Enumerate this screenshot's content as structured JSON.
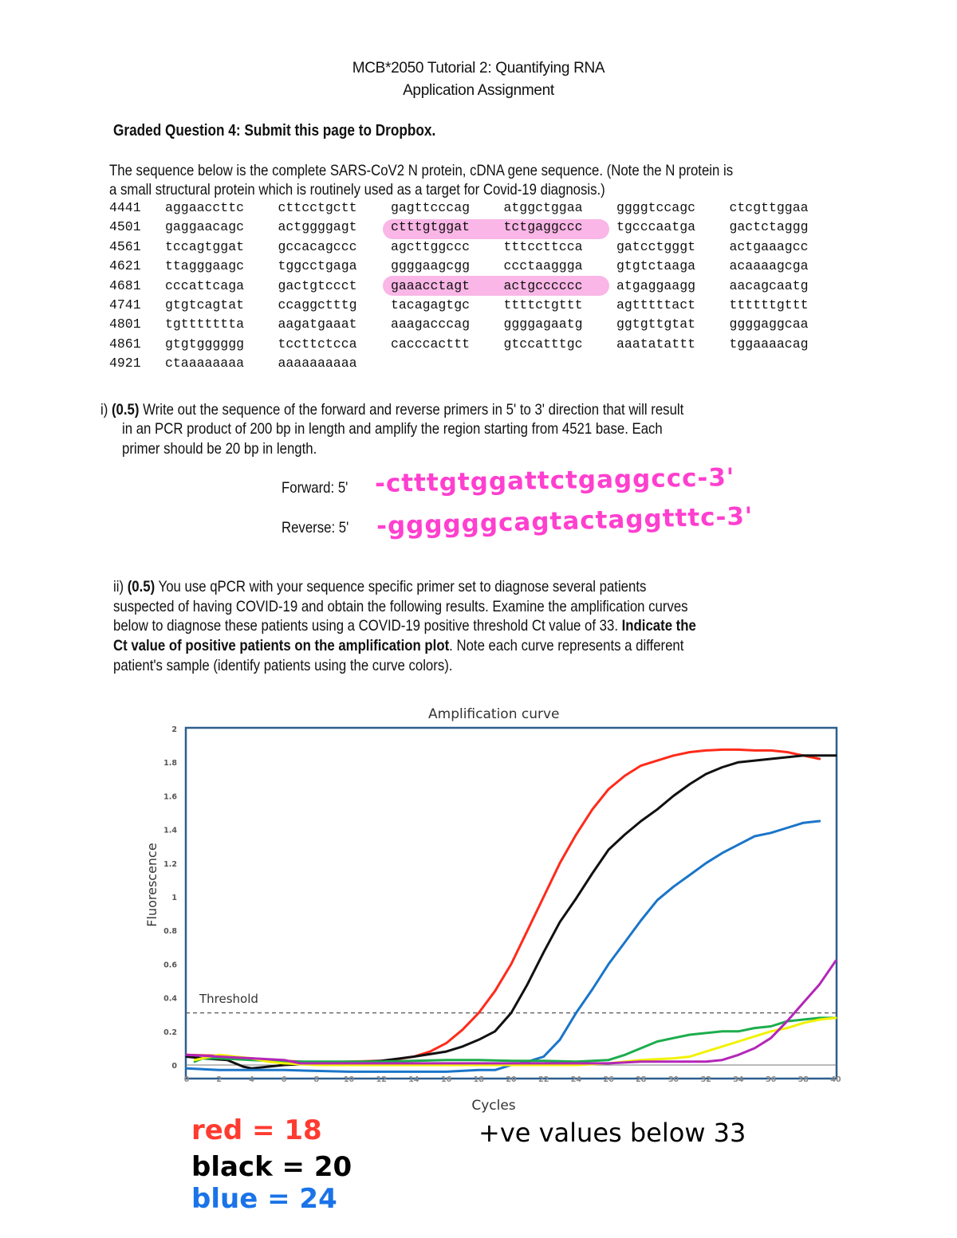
{
  "header": {
    "title_line1": "MCB*2050 Tutorial 2: Quantifying RNA",
    "title_line2": "Application Assignment"
  },
  "question_heading": "Graded Question 4: Submit this page to Dropbox.",
  "intro": {
    "line1": "The sequence below is the complete SARS-CoV2 N protein, cDNA gene sequence. (Note the N  protein is",
    "line2": "a small structural protein which is routinely used as a target for Covid-19 diagnosis.)"
  },
  "sequence": {
    "rows": [
      {
        "pos": "4441",
        "blocks": [
          "aggaaccttc",
          "cttcctgctt",
          "gagttcccag",
          "atggctggaa",
          "ggggtccagc",
          "ctcgttggaa"
        ]
      },
      {
        "pos": "4501",
        "blocks": [
          "gaggaacagc",
          "actggggagt",
          "ctttgtggat",
          "tctgaggccc",
          "tgcccaatga",
          "gactctaggg"
        ]
      },
      {
        "pos": "4561",
        "blocks": [
          "tccagtggat",
          "gccacagccc",
          "agcttggccc",
          "tttccttcca",
          "gatcctgggt",
          "actgaaagcc"
        ]
      },
      {
        "pos": "4621",
        "blocks": [
          "ttagggaagc",
          "tggcctgaga",
          "ggggaagcgg",
          "ccctaaggga",
          "gtgtctaaga",
          "acaaaagcga"
        ]
      },
      {
        "pos": "4681",
        "blocks": [
          "cccattcaga",
          "gactgtccct",
          "gaaacctagt",
          "actgcccccc",
          "atgaggaagg",
          "aacagcaatg"
        ]
      },
      {
        "pos": "4741",
        "blocks": [
          "gtgtcagtat",
          "ccaggctttg",
          "tacagagtgc",
          "ttttctgttt",
          "agtttttact",
          "ttttttgttt"
        ]
      },
      {
        "pos": "4801",
        "blocks": [
          "tgttttttta",
          "aagatgaaat",
          "aaagacccag",
          "ggggagaatg",
          "ggtgttgtat",
          "ggggaggcaa"
        ]
      },
      {
        "pos": "4861",
        "blocks": [
          "gtgtgggggg",
          "tccttctcca",
          "cacccacttt",
          "gtccatttgc",
          "aaatatattt",
          "tggaaaacag"
        ]
      },
      {
        "pos": "4921",
        "blocks": [
          "ctaaaaaaaa",
          "aaaaaaaaaa"
        ]
      }
    ],
    "highlights": [
      {
        "row": 1,
        "blocks": "3-4",
        "color": "#f9b6e6"
      },
      {
        "row": 4,
        "blocks": "3-4",
        "color": "#f9b6e6"
      }
    ]
  },
  "part_i": {
    "label": "i)",
    "points": "(0.5)",
    "line1": " Write out the sequence of the forward and reverse primers in 5' to 3' direction that will result",
    "line2": "in an PCR product of 200 bp in length and amplify the region starting from 4521 base.  Each",
    "line3": "primer should be 20 bp in length.",
    "forward_label": "Forward: 5'",
    "forward_answer": "-ctttgtggattctgaggccc-3'",
    "reverse_label": "Reverse: 5'",
    "reverse_answer": "-ggggggcagtactaggtttc-3'"
  },
  "part_ii": {
    "label": "ii)",
    "points": "(0.5)",
    "line1": " You use qPCR with your sequence specific primer set to diagnose several patients",
    "line2": "suspected of having COVID-19 and obtain the following results. Examine the amplification curves",
    "line3a": "below to diagnose these patients using a COVID-19 positive threshold Ct value of 33.  ",
    "line3b": "Indicate the",
    "line4a": "Ct value of positive patients on the amplification plot",
    "line4b": ". Note each curve represents a different",
    "line5": "patient's sample (identify patients using the curve colors)."
  },
  "chart_data": {
    "type": "line",
    "title": "Amplification curve",
    "xlabel": "Cycles",
    "ylabel": "Fluorescence",
    "xlim": [
      0,
      40
    ],
    "ylim": [
      0,
      2
    ],
    "x_ticks": [
      "0",
      "2",
      "4",
      "6",
      "8",
      "10",
      "12",
      "14",
      "16",
      "18",
      "20",
      "22",
      "24",
      "26",
      "28",
      "30",
      "32",
      "34",
      "36",
      "38",
      "40"
    ],
    "y_ticks": [
      "0",
      "0.2",
      "0.4",
      "0.6",
      "0.8",
      "1",
      "1.2",
      "1.4",
      "1.6",
      "1.8",
      "2"
    ],
    "grid": false,
    "threshold": {
      "label": "Threshold",
      "value": 0.31
    },
    "series": [
      {
        "name": "red",
        "color": "#ff2a1a",
        "x": [
          0,
          2,
          4,
          6,
          8,
          10,
          12,
          13,
          14,
          15,
          16,
          17,
          18,
          19,
          20,
          21,
          22,
          23,
          24,
          25,
          26,
          27,
          28,
          29,
          30,
          31,
          32,
          33,
          34,
          35,
          36,
          37,
          38,
          39
        ],
        "y": [
          0.06,
          0.055,
          0.04,
          0.025,
          0.015,
          0.02,
          0.025,
          0.035,
          0.05,
          0.08,
          0.13,
          0.21,
          0.31,
          0.44,
          0.6,
          0.8,
          1.0,
          1.2,
          1.37,
          1.52,
          1.64,
          1.72,
          1.78,
          1.81,
          1.84,
          1.86,
          1.87,
          1.875,
          1.875,
          1.87,
          1.87,
          1.86,
          1.84,
          1.82
        ]
      },
      {
        "name": "black",
        "color": "#111111",
        "x": [
          0,
          1,
          2.5,
          3.5,
          4,
          5,
          6,
          8,
          10,
          12,
          14,
          16,
          17,
          18,
          19,
          20,
          21,
          22,
          23,
          24,
          25,
          26,
          27,
          28,
          29,
          30,
          31,
          32,
          33,
          34,
          35,
          36,
          37,
          38,
          39,
          40
        ],
        "y": [
          0.05,
          0.04,
          0.03,
          -0.01,
          -0.02,
          -0.01,
          0.0,
          0.01,
          0.015,
          0.025,
          0.05,
          0.08,
          0.11,
          0.15,
          0.2,
          0.31,
          0.48,
          0.67,
          0.85,
          0.99,
          1.14,
          1.28,
          1.37,
          1.45,
          1.52,
          1.6,
          1.67,
          1.73,
          1.77,
          1.8,
          1.81,
          1.82,
          1.83,
          1.84,
          1.84,
          1.84
        ]
      },
      {
        "name": "blue",
        "color": "#1a75c9",
        "x": [
          0,
          2,
          4,
          6,
          8,
          10,
          12,
          14,
          16,
          18,
          19,
          20,
          21,
          22,
          23,
          24,
          25,
          26,
          27,
          28,
          29,
          30,
          31,
          32,
          33,
          34,
          35,
          36,
          37,
          38,
          39
        ],
        "y": [
          -0.02,
          -0.03,
          -0.03,
          -0.03,
          -0.035,
          -0.04,
          -0.04,
          -0.04,
          -0.04,
          -0.03,
          -0.03,
          0.0,
          0.02,
          0.05,
          0.15,
          0.31,
          0.45,
          0.6,
          0.73,
          0.86,
          0.98,
          1.06,
          1.13,
          1.2,
          1.26,
          1.31,
          1.36,
          1.38,
          1.41,
          1.44,
          1.45
        ]
      },
      {
        "name": "green",
        "color": "#1cad4c",
        "x": [
          0.5,
          1,
          2,
          4,
          6,
          8,
          10,
          12,
          14,
          16,
          18,
          20,
          22,
          24,
          26,
          27,
          28,
          29,
          30,
          31,
          32,
          33,
          34,
          35,
          36,
          37,
          38,
          39,
          40
        ],
        "y": [
          0.02,
          0.04,
          0.04,
          0.03,
          0.02,
          0.02,
          0.02,
          0.02,
          0.025,
          0.03,
          0.03,
          0.025,
          0.025,
          0.02,
          0.03,
          0.06,
          0.1,
          0.14,
          0.16,
          0.18,
          0.19,
          0.2,
          0.2,
          0.22,
          0.23,
          0.26,
          0.27,
          0.28,
          0.28
        ]
      },
      {
        "name": "yellow",
        "color": "#f2f200",
        "x": [
          0.5,
          2,
          4,
          5,
          6,
          8,
          10,
          12,
          14,
          16,
          18,
          20,
          22,
          24,
          26,
          28,
          30,
          31,
          32,
          33,
          34,
          35,
          36,
          37,
          38,
          39,
          40
        ],
        "y": [
          0.03,
          0.06,
          0.04,
          0.02,
          0.01,
          0.0,
          0.0,
          0.0,
          0.0,
          0.0,
          0.0,
          0.0,
          0.0,
          0.0,
          0.01,
          0.03,
          0.04,
          0.05,
          0.08,
          0.11,
          0.14,
          0.17,
          0.2,
          0.22,
          0.25,
          0.27,
          0.28
        ]
      },
      {
        "name": "purple",
        "color": "#b326b8",
        "x": [
          0,
          2,
          4,
          6,
          7,
          8,
          10,
          12,
          14,
          16,
          18,
          20,
          22,
          24,
          26,
          28,
          30,
          32,
          33,
          34,
          35,
          36,
          37,
          38,
          39,
          40
        ],
        "y": [
          0.06,
          0.05,
          0.04,
          0.03,
          0.01,
          0.01,
          0.01,
          0.01,
          0.01,
          0.01,
          0.01,
          0.01,
          0.01,
          0.01,
          0.01,
          0.02,
          0.02,
          0.02,
          0.03,
          0.06,
          0.1,
          0.16,
          0.26,
          0.37,
          0.48,
          0.62
        ]
      }
    ],
    "annotations": {
      "red": {
        "text": "red = 18",
        "color": "#ff3b30"
      },
      "black": {
        "text": "black = 20",
        "color": "#000000"
      },
      "blue": {
        "text": "blue = 24",
        "color": "#1a73e8"
      },
      "note": {
        "text": "+ve values below 33",
        "color": "#000000"
      }
    }
  }
}
